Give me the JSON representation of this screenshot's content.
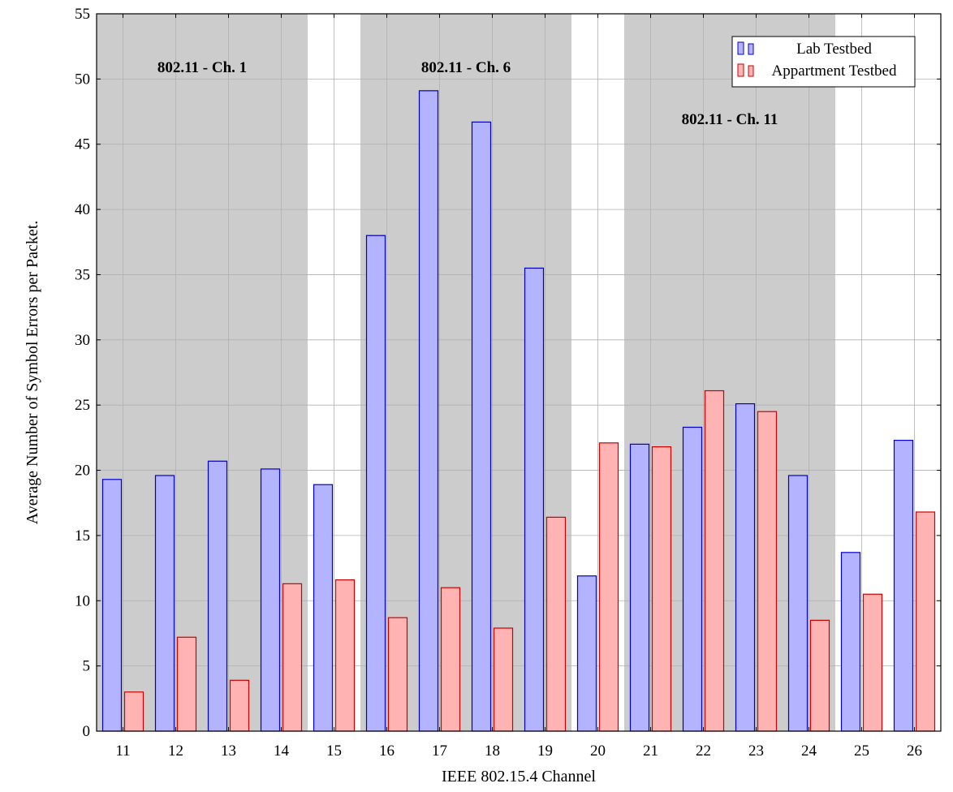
{
  "chart_data": {
    "type": "bar",
    "title": "",
    "xlabel": "IEEE 802.15.4 Channel",
    "ylabel": "Average Number of Symbol Errors per Packet.",
    "categories": [
      "11",
      "12",
      "13",
      "14",
      "15",
      "16",
      "17",
      "18",
      "19",
      "20",
      "21",
      "22",
      "23",
      "24",
      "25",
      "26"
    ],
    "ylim": [
      0,
      55
    ],
    "yticks": [
      0,
      5,
      10,
      15,
      20,
      25,
      30,
      35,
      40,
      45,
      50,
      55
    ],
    "grid": true,
    "legend_position": "top-right",
    "series": [
      {
        "name": "Lab Testbed",
        "fill": "#b3b3ff",
        "stroke": "#0000cc",
        "values": [
          19.3,
          19.6,
          20.7,
          20.1,
          18.9,
          38.0,
          49.1,
          46.7,
          35.5,
          11.9,
          22.0,
          23.3,
          25.1,
          19.6,
          13.7,
          22.3
        ]
      },
      {
        "name": "Appartment Testbed",
        "fill": "#ffb3b3",
        "stroke": "#cc0000",
        "values": [
          3.0,
          7.2,
          3.9,
          11.3,
          11.6,
          8.7,
          11.0,
          7.9,
          16.4,
          22.1,
          21.8,
          26.1,
          24.5,
          8.5,
          10.5,
          16.8
        ]
      }
    ],
    "bands": [
      {
        "label": "802.11 - Ch. 1",
        "from": "11",
        "to": "14",
        "color": "#cccccc"
      },
      {
        "label": "802.11 - Ch. 6",
        "from": "16",
        "to": "19",
        "color": "#cccccc"
      },
      {
        "label": "802.11 - Ch. 11",
        "from": "21",
        "to": "24",
        "color": "#cccccc"
      }
    ]
  }
}
